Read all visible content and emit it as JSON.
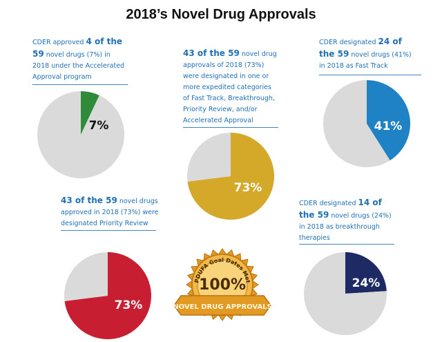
{
  "title": "2018’s Novel Drug Approvals",
  "badge": {
    "line1": "PDUFA Goal Dates Met",
    "big": "100%",
    "ribbon": "NOVEL DRUG APPROVALS",
    "colors": {
      "gold": "#e39a22",
      "gold_light": "#f6c65b",
      "gold_dark": "#b86f0f"
    }
  },
  "captions": [
    {
      "a": "CDER approved ",
      "b": "4 of the",
      "c": "",
      "d": "59",
      "e": " novel drugs (7%) in",
      "f": "2018 under the Accelerated",
      "g": "Approval program"
    },
    {
      "a": "",
      "b": "43 of the 59",
      "c": " novel drug",
      "d": "approvals of 2018 (73%)",
      "e": "were designated in one or",
      "f": "more expedited categories",
      "g": "of Fast Track, Breakthrough,",
      "h": "Priority Review, and/or",
      "i": "Accelerated Approval"
    },
    {
      "a": "CDER designated ",
      "b": "24 of",
      "c": "",
      "d": "the 59",
      "e": " novel drugs (41%)",
      "f": "in 2018 as Fast Track"
    },
    {
      "a": "",
      "b": "43 of the 59",
      "c": " novel drugs",
      "d": "approved in 2018 (73%) were",
      "e": "designated Priority Review"
    },
    {
      "a": "CDER designated ",
      "b": "14 of",
      "c": "",
      "d": "the 59",
      "e": " novel drugs (24%)",
      "f": "in 2018 as breakthrough",
      "g": "therapies"
    }
  ],
  "chart_data": [
    {
      "type": "pie",
      "label": "7%",
      "values": [
        7,
        93
      ],
      "colors": [
        "#2e8b3a",
        "#dadada"
      ],
      "label_color": "#111111"
    },
    {
      "type": "pie",
      "label": "73%",
      "values": [
        73,
        27
      ],
      "colors": [
        "#d4a829",
        "#dadada"
      ],
      "label_color": "#ffffff"
    },
    {
      "type": "pie",
      "label": "41%",
      "values": [
        41,
        59
      ],
      "colors": [
        "#1f82c4",
        "#dadada"
      ],
      "label_color": "#ffffff"
    },
    {
      "type": "pie",
      "label": "73%",
      "values": [
        73,
        27
      ],
      "colors": [
        "#c81e32",
        "#dadada"
      ],
      "label_color": "#ffffff"
    },
    {
      "type": "pie",
      "label": "24%",
      "values": [
        24,
        76
      ],
      "colors": [
        "#1d2a63",
        "#dadada"
      ],
      "label_color": "#ffffff"
    }
  ]
}
